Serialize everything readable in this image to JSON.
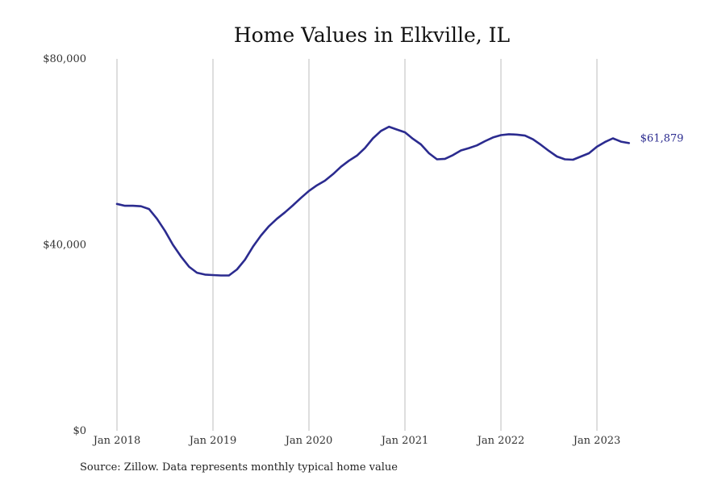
{
  "chart_data": {
    "type": "line",
    "title": "Home Values in Elkville, IL",
    "xlabel": "",
    "ylabel": "",
    "ylim": [
      0,
      80000
    ],
    "yticks": [
      {
        "value": 0,
        "label": "$0"
      },
      {
        "value": 40000,
        "label": "$40,000"
      },
      {
        "value": 80000,
        "label": "$80,000"
      }
    ],
    "xticks": [
      {
        "value": "2018-01",
        "label": "Jan 2018"
      },
      {
        "value": "2019-01",
        "label": "Jan 2019"
      },
      {
        "value": "2020-01",
        "label": "Jan 2020"
      },
      {
        "value": "2021-01",
        "label": "Jan 2021"
      },
      {
        "value": "2022-01",
        "label": "Jan 2022"
      },
      {
        "value": "2023-01",
        "label": "Jan 2023"
      }
    ],
    "x": [
      "2018-01",
      "2018-02",
      "2018-03",
      "2018-04",
      "2018-05",
      "2018-06",
      "2018-07",
      "2018-08",
      "2018-09",
      "2018-10",
      "2018-11",
      "2018-12",
      "2019-01",
      "2019-02",
      "2019-03",
      "2019-04",
      "2019-05",
      "2019-06",
      "2019-07",
      "2019-08",
      "2019-09",
      "2019-10",
      "2019-11",
      "2019-12",
      "2020-01",
      "2020-02",
      "2020-03",
      "2020-04",
      "2020-05",
      "2020-06",
      "2020-07",
      "2020-08",
      "2020-09",
      "2020-10",
      "2020-11",
      "2020-12",
      "2021-01",
      "2021-02",
      "2021-03",
      "2021-04",
      "2021-05",
      "2021-06",
      "2021-07",
      "2021-08",
      "2021-09",
      "2021-10",
      "2021-11",
      "2021-12",
      "2022-01",
      "2022-02",
      "2022-03",
      "2022-04",
      "2022-05",
      "2022-06",
      "2022-07",
      "2022-08",
      "2022-09",
      "2022-10",
      "2022-11",
      "2022-12",
      "2023-01",
      "2023-02",
      "2023-03",
      "2023-04",
      "2023-05"
    ],
    "series": [
      {
        "color": "#2b2b8f",
        "values": [
          48800,
          48400,
          48400,
          48300,
          47700,
          45600,
          43000,
          40000,
          37500,
          35300,
          34000,
          33600,
          33500,
          33400,
          33400,
          34700,
          36800,
          39600,
          42000,
          44000,
          45600,
          47000,
          48500,
          50100,
          51600,
          52800,
          53800,
          55200,
          56800,
          58100,
          59200,
          60800,
          62900,
          64500,
          65400,
          64800,
          64200,
          62800,
          61600,
          59700,
          58400,
          58500,
          59300,
          60300,
          60800,
          61400,
          62300,
          63100,
          63600,
          63800,
          63700,
          63500,
          62700,
          61500,
          60200,
          59000,
          58400,
          58300,
          59000,
          59700,
          61100,
          62100,
          62900,
          62200,
          61879
        ]
      }
    ],
    "end_label": "$61,879"
  },
  "footer": {
    "source": "Source: Zillow. Data represents monthly typical home value"
  }
}
